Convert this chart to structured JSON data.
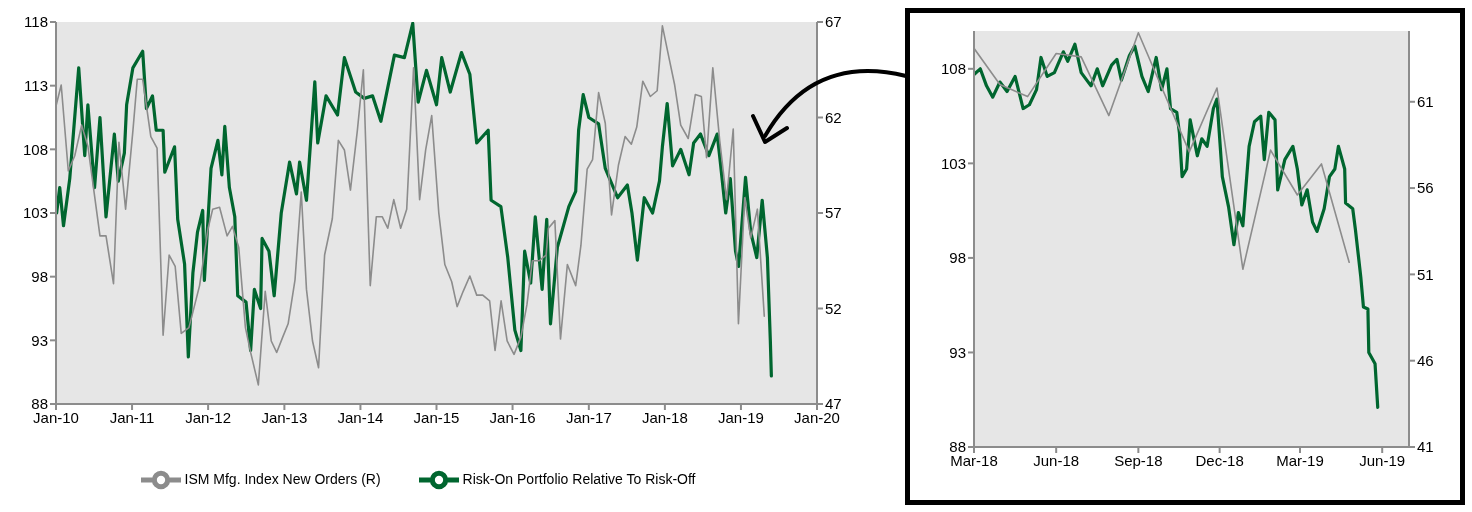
{
  "chart_data": [
    {
      "type": "line",
      "legend": "bottom",
      "xlim": [
        "2010-01-01",
        "2020-01-01"
      ],
      "xticks": [
        {
          "value": "2010-01-01",
          "label": "Jan-10"
        },
        {
          "value": "2011-01-01",
          "label": "Jan-11"
        },
        {
          "value": "2012-01-01",
          "label": "Jan-12"
        },
        {
          "value": "2013-01-01",
          "label": "Jan-13"
        },
        {
          "value": "2014-01-01",
          "label": "Jan-14"
        },
        {
          "value": "2015-01-01",
          "label": "Jan-15"
        },
        {
          "value": "2016-01-01",
          "label": "Jan-16"
        },
        {
          "value": "2017-01-01",
          "label": "Jan-17"
        },
        {
          "value": "2018-01-01",
          "label": "Jan-18"
        },
        {
          "value": "2019-01-01",
          "label": "Jan-19"
        },
        {
          "value": "2020-01-01",
          "label": "Jan-20"
        }
      ],
      "ylim": [
        88,
        118
      ],
      "yticks": [
        88,
        93,
        98,
        103,
        108,
        113,
        118
      ],
      "y2lim": [
        47,
        67
      ],
      "y2ticks": [
        47,
        52,
        57,
        62,
        67
      ],
      "series": [
        {
          "name": "Risk-On Portfolio Relative To Risk-Off",
          "color": "#00662f",
          "x": [
            "2010-01-04",
            "2010-01-19",
            "2010-02-06",
            "2010-03-08",
            "2010-04-20",
            "2010-05-19",
            "2010-06-03",
            "2010-07-05",
            "2010-07-31",
            "2010-08-29",
            "2010-10-08",
            "2010-10-27",
            "2010-11-25",
            "2010-12-06",
            "2011-01-05",
            "2011-02-21",
            "2011-03-11",
            "2011-04-09",
            "2011-04-27",
            "2011-05-30",
            "2011-06-07",
            "2011-07-24",
            "2011-08-08",
            "2011-09-10",
            "2011-09-28",
            "2011-10-20",
            "2011-11-11",
            "2011-12-06",
            "2011-12-14",
            "2012-01-15",
            "2012-02-17",
            "2012-03-07",
            "2012-03-21",
            "2012-04-12",
            "2012-05-08",
            "2012-05-22",
            "2012-07-01",
            "2012-07-23",
            "2012-08-10",
            "2012-09-09",
            "2012-09-16",
            "2012-10-19",
            "2012-11-13",
            "2012-12-17",
            "2013-01-26",
            "2013-02-28",
            "2013-03-15",
            "2013-04-17",
            "2013-05-27",
            "2013-06-10",
            "2013-07-20",
            "2013-09-13",
            "2013-10-16",
            "2013-12-09",
            "2014-01-19",
            "2014-02-28",
            "2014-04-09",
            "2014-06-13",
            "2014-07-31",
            "2014-09-09",
            "2014-10-05",
            "2014-11-14",
            "2015-01-01",
            "2015-01-26",
            "2015-03-08",
            "2015-05-01",
            "2015-06-10",
            "2015-07-13",
            "2015-09-06",
            "2015-09-20",
            "2015-11-06",
            "2015-12-09",
            "2016-01-12",
            "2016-02-10",
            "2016-02-28",
            "2016-03-28",
            "2016-04-19",
            "2016-05-22",
            "2016-06-13",
            "2016-07-01",
            "2016-08-03",
            "2016-09-27",
            "2016-10-30",
            "2016-11-13",
            "2016-12-05",
            "2017-01-01",
            "2017-02-17",
            "2017-03-21",
            "2017-05-19",
            "2017-07-05",
            "2017-07-27",
            "2017-08-22",
            "2017-09-24",
            "2017-11-03",
            "2017-12-06",
            "2017-12-20",
            "2018-01-12",
            "2018-02-07",
            "2018-03-18",
            "2018-04-27",
            "2018-05-19",
            "2018-06-21",
            "2018-07-31",
            "2018-09-09",
            "2018-09-24",
            "2018-10-20",
            "2018-11-11",
            "2018-12-06",
            "2018-12-21",
            "2019-01-23",
            "2019-02-17",
            "2019-03-18",
            "2019-04-13",
            "2019-05-08",
            "2019-05-22",
            "2019-05-27"
          ],
          "values": [
            103,
            105,
            102,
            105.7,
            114.4,
            107.5,
            111.5,
            105,
            110.5,
            102.7,
            109.2,
            105.5,
            107.7,
            111.5,
            114.4,
            115.7,
            111.2,
            112.2,
            109.5,
            109.5,
            106.2,
            108.2,
            102.5,
            99,
            91.7,
            98.3,
            101.5,
            103.2,
            97.7,
            106.5,
            108.7,
            106,
            109.8,
            105,
            102.7,
            96.5,
            96,
            92.2,
            97,
            95.5,
            101,
            100,
            96.5,
            103,
            107,
            104.5,
            107,
            104,
            113.3,
            108.5,
            112.2,
            110.7,
            115.2,
            112.5,
            112,
            112.2,
            110.2,
            115.4,
            115.2,
            117.9,
            111.7,
            114.2,
            111.5,
            115.2,
            112.5,
            115.6,
            113.9,
            108.5,
            109.5,
            104,
            103.5,
            99.5,
            93.8,
            92.2,
            100,
            97.5,
            102.7,
            97,
            102.5,
            94.3,
            100.3,
            103.5,
            104.7,
            109.5,
            112.3,
            110.5,
            110,
            106.5,
            104.2,
            105.2,
            103,
            99.3,
            104.2,
            103,
            105.5,
            108.2,
            111.6,
            106.7,
            108,
            106,
            108.5,
            109.2,
            107.5,
            109.2,
            107,
            103,
            105.7,
            100,
            98.8,
            105.8,
            101.5,
            99.5,
            104,
            99.5,
            93,
            90.2
          ]
        },
        {
          "name": "ISM Mfg. Index New Orders (R)",
          "color": "#8c8c8c",
          "axis": "y2",
          "x": [
            "2010-01-01",
            "2010-01-26",
            "2010-03-01",
            "2010-04-01",
            "2010-05-04",
            "2010-06-03",
            "2010-07-31",
            "2010-08-29",
            "2010-10-04",
            "2010-10-30",
            "2010-12-01",
            "2011-01-05",
            "2011-01-26",
            "2011-02-21",
            "2011-04-01",
            "2011-05-01",
            "2011-05-30",
            "2011-06-28",
            "2011-07-27",
            "2011-08-25",
            "2011-10-01",
            "2011-11-21",
            "2012-01-01",
            "2012-01-23",
            "2012-02-25",
            "2012-04-01",
            "2012-04-27",
            "2012-05-27",
            "2012-06-28",
            "2012-07-23",
            "2012-08-29",
            "2012-10-01",
            "2012-10-30",
            "2012-11-25",
            "2012-12-24",
            "2013-01-19",
            "2013-02-21",
            "2013-03-23",
            "2013-04-17",
            "2013-05-16",
            "2013-06-14",
            "2013-07-13",
            "2013-08-19",
            "2013-09-17",
            "2013-10-16",
            "2013-11-14",
            "2013-12-17",
            "2014-01-15",
            "2014-02-17",
            "2014-03-18",
            "2014-04-16",
            "2014-05-12",
            "2014-06-10",
            "2014-07-13",
            "2014-08-11",
            "2014-09-13",
            "2014-10-12",
            "2014-11-10",
            "2014-12-09",
            "2015-01-12",
            "2015-02-10",
            "2015-03-15",
            "2015-04-10",
            "2015-05-09",
            "2015-06-10",
            "2015-07-13",
            "2015-08-11",
            "2015-09-13",
            "2015-10-09",
            "2015-11-07",
            "2015-12-06",
            "2016-01-08",
            "2016-02-10",
            "2016-03-10",
            "2016-04-05",
            "2016-05-08",
            "2016-06-10",
            "2016-06-21",
            "2016-07-22",
            "2016-08-18",
            "2016-09-20",
            "2016-10-30",
            "2016-11-24",
            "2016-12-24",
            "2017-01-19",
            "2017-02-17",
            "2017-03-21",
            "2017-04-20",
            "2017-05-23",
            "2017-06-24",
            "2017-07-24",
            "2017-08-19",
            "2017-09-17",
            "2017-10-23",
            "2017-11-25",
            "2017-12-20",
            "2018-01-23",
            "2018-02-17",
            "2018-03-18",
            "2018-04-23",
            "2018-05-27",
            "2018-06-25",
            "2018-07-20",
            "2018-08-19",
            "2018-09-21",
            "2018-10-24",
            "2018-11-25",
            "2018-12-20",
            "2019-01-19",
            "2019-02-17",
            "2019-03-21",
            "2019-04-23"
          ],
          "values": [
            62.6,
            63.7,
            59.2,
            60,
            61.6,
            60.5,
            55.8,
            55.8,
            53.3,
            60.7,
            57.2,
            61.3,
            64,
            64,
            61,
            60.4,
            50.6,
            54.8,
            54.2,
            50.7,
            51,
            53.2,
            56.2,
            57.2,
            57.3,
            55.8,
            56.3,
            55.2,
            51,
            49.7,
            48,
            52.9,
            50.3,
            49.7,
            50.5,
            51.2,
            53.5,
            58.1,
            53,
            50.3,
            48.9,
            54.8,
            56.7,
            60.8,
            60.3,
            58.2,
            61.3,
            64.5,
            53.2,
            56.8,
            56.8,
            56.2,
            57.7,
            56.2,
            57.2,
            64.6,
            57.7,
            60.3,
            62.1,
            57,
            54.3,
            53.4,
            52.1,
            52.9,
            53.7,
            52.7,
            52.7,
            52.4,
            49.8,
            52.4,
            50.3,
            49.6,
            50.5,
            52.2,
            54.5,
            54.5,
            54.8,
            56.2,
            56.6,
            50.4,
            54.3,
            53.2,
            55.3,
            59.3,
            59.8,
            63.3,
            61.7,
            56.9,
            59.5,
            61,
            60.6,
            61.5,
            63.9,
            63.1,
            63.4,
            66.8,
            65,
            63.7,
            61.6,
            60.9,
            63.2,
            63.1,
            59.9,
            64.6,
            60.8,
            57.7,
            61.4,
            51.2,
            57.8,
            55.7,
            57.2,
            51.6
          ]
        }
      ]
    },
    {
      "type": "line",
      "xlim": [
        "2018-03-01",
        "2019-07-01"
      ],
      "xticks": [
        {
          "value": "2018-03-01",
          "label": "Mar-18"
        },
        {
          "value": "2018-06-01",
          "label": "Jun-18"
        },
        {
          "value": "2018-09-01",
          "label": "Sep-18"
        },
        {
          "value": "2018-12-01",
          "label": "Dec-18"
        },
        {
          "value": "2019-03-01",
          "label": "Mar-19"
        },
        {
          "value": "2019-06-01",
          "label": "Jun-19"
        }
      ],
      "ylim": [
        88,
        110
      ],
      "yticks": [
        88,
        93,
        98,
        103,
        108
      ],
      "y2lim": [
        41,
        65.1
      ],
      "y2ticks": [
        41,
        46,
        51,
        56,
        61
      ],
      "series": [
        {
          "color": "#00662f",
          "x": [
            "2018-03-01",
            "2018-03-08",
            "2018-03-15",
            "2018-03-22",
            "2018-03-30",
            "2018-04-07",
            "2018-04-16",
            "2018-04-25",
            "2018-05-02",
            "2018-05-10",
            "2018-05-15",
            "2018-05-22",
            "2018-05-30",
            "2018-06-09",
            "2018-06-14",
            "2018-06-22",
            "2018-06-29",
            "2018-07-10",
            "2018-07-17",
            "2018-07-23",
            "2018-08-02",
            "2018-08-08",
            "2018-08-13",
            "2018-08-22",
            "2018-08-28",
            "2018-09-05",
            "2018-09-12",
            "2018-09-21",
            "2018-09-27",
            "2018-10-03",
            "2018-10-07",
            "2018-10-14",
            "2018-10-17",
            "2018-10-20",
            "2018-10-25",
            "2018-10-29",
            "2018-11-06",
            "2018-11-11",
            "2018-11-17",
            "2018-11-24",
            "2018-11-28",
            "2018-12-04",
            "2018-12-11",
            "2018-12-17",
            "2018-12-22",
            "2018-12-27",
            "2019-01-03",
            "2019-01-09",
            "2019-01-16",
            "2019-01-20",
            "2019-01-25",
            "2019-02-01",
            "2019-02-04",
            "2019-02-12",
            "2019-02-21",
            "2019-02-26",
            "2019-03-03",
            "2019-03-09",
            "2019-03-15",
            "2019-03-20",
            "2019-03-28",
            "2019-04-03",
            "2019-04-09",
            "2019-04-13",
            "2019-04-20",
            "2019-04-21",
            "2019-04-29",
            "2019-05-02",
            "2019-05-08",
            "2019-05-11",
            "2019-05-16",
            "2019-05-17",
            "2019-05-24",
            "2019-05-27"
          ],
          "values": [
            107.7,
            108,
            107.1,
            106.5,
            107.3,
            106.8,
            107.6,
            105.9,
            106.1,
            106.9,
            108.6,
            107.6,
            107.8,
            108.9,
            108.4,
            109.3,
            107.8,
            107.1,
            108,
            107.1,
            108.2,
            108.5,
            107.4,
            108.7,
            109.2,
            107.6,
            106.8,
            108.6,
            106.9,
            108,
            105.9,
            105.7,
            104.6,
            102.3,
            102.7,
            105.3,
            103.4,
            104.3,
            103.9,
            105.9,
            106.4,
            102.3,
            100.7,
            98.7,
            100.4,
            99.7,
            103.9,
            105.2,
            105.5,
            103.2,
            105.7,
            105.3,
            101.6,
            103.2,
            103.9,
            102.7,
            100.8,
            101.6,
            99.9,
            99.4,
            100.6,
            102.3,
            102.7,
            103.9,
            102.7,
            100.9,
            100.6,
            99.5,
            97,
            95.4,
            95.3,
            93,
            92.4,
            90.1
          ]
        },
        {
          "color": "#8c8c8c",
          "axis": "y2",
          "x": [
            "2018-03-01",
            "2018-03-30",
            "2018-04-30",
            "2018-06-01",
            "2018-06-29",
            "2018-07-30",
            "2018-09-01",
            "2018-10-28",
            "2018-11-28",
            "2018-12-27",
            "2019-01-27",
            "2019-02-26",
            "2019-03-25",
            "2019-04-25"
          ],
          "values": [
            64.1,
            62,
            61.3,
            63.8,
            63.6,
            60.2,
            65,
            58.1,
            61.8,
            51.3,
            58.2,
            55.6,
            57.4,
            51.7
          ]
        }
      ]
    }
  ]
}
